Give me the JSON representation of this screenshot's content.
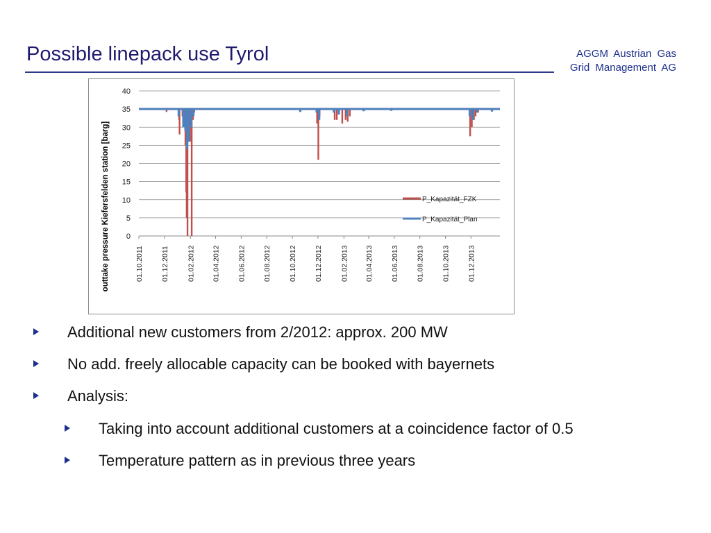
{
  "header": {
    "title": "Possible linepack use Tyrol",
    "brand_line1": "AGGM   Austrian   Gas",
    "brand_line2": "Grid Management  AG"
  },
  "chart_data": {
    "type": "line",
    "ylabel": "outtake pressure Kiefersfelden station [barg]",
    "xlabel": "",
    "ylim": [
      0,
      40
    ],
    "yticks": [
      0,
      5,
      10,
      15,
      20,
      25,
      30,
      35,
      40
    ],
    "xticks": [
      "01.10.2011",
      "01.12.2011",
      "01.02.2012",
      "01.04.2012",
      "01.06.2012",
      "01.08.2012",
      "01.10.2012",
      "01.12.2012",
      "01.02.2013",
      "01.04.2013",
      "01.06.2013",
      "01.08.2013",
      "01.10.2013",
      "01.12.2013"
    ],
    "x_range": [
      "2011-10-01",
      "2014-02-08"
    ],
    "grid": "horizontal",
    "legend": "right",
    "series": [
      {
        "name": "P_Kapazität_FZK",
        "color": "#c0504d",
        "baseline": 35,
        "dips": [
          {
            "date": "2011-12-06",
            "value": 34.2
          },
          {
            "date": "2012-01-05",
            "value": 32
          },
          {
            "date": "2012-01-06",
            "value": 28
          },
          {
            "date": "2012-01-13",
            "value": 33
          },
          {
            "date": "2012-01-20",
            "value": 25
          },
          {
            "date": "2012-01-22",
            "value": 12
          },
          {
            "date": "2012-01-23",
            "value": 5
          },
          {
            "date": "2012-01-24",
            "value": 17
          },
          {
            "date": "2012-01-25",
            "value": 0
          },
          {
            "date": "2012-01-28",
            "value": 28
          },
          {
            "date": "2012-01-31",
            "value": 26
          },
          {
            "date": "2012-02-04",
            "value": 0
          },
          {
            "date": "2012-02-07",
            "value": 32
          },
          {
            "date": "2012-02-10",
            "value": 34
          },
          {
            "date": "2012-11-29",
            "value": 31
          },
          {
            "date": "2012-12-02",
            "value": 21
          },
          {
            "date": "2012-12-05",
            "value": 33
          },
          {
            "date": "2013-01-10",
            "value": 32
          },
          {
            "date": "2013-01-15",
            "value": 32
          },
          {
            "date": "2013-01-28",
            "value": 31
          },
          {
            "date": "2013-02-05",
            "value": 32
          },
          {
            "date": "2013-02-10",
            "value": 31.5
          },
          {
            "date": "2013-02-15",
            "value": 33
          },
          {
            "date": "2013-11-29",
            "value": 27.5
          },
          {
            "date": "2013-12-03",
            "value": 30
          },
          {
            "date": "2013-12-08",
            "value": 32
          },
          {
            "date": "2013-12-12",
            "value": 33
          },
          {
            "date": "2013-12-18",
            "value": 34
          }
        ]
      },
      {
        "name": "P_Kapazität_Plan",
        "color": "#4f81bd",
        "baseline": 35,
        "dips": [
          {
            "date": "2012-01-04",
            "value": 33
          },
          {
            "date": "2012-01-15",
            "value": 30
          },
          {
            "date": "2012-01-20",
            "value": 29
          },
          {
            "date": "2012-01-24",
            "value": 24
          },
          {
            "date": "2012-01-28",
            "value": 26
          },
          {
            "date": "2012-02-03",
            "value": 30
          },
          {
            "date": "2012-02-08",
            "value": 33
          },
          {
            "date": "2012-10-20",
            "value": 34.2
          },
          {
            "date": "2012-11-28",
            "value": 34
          },
          {
            "date": "2012-12-04",
            "value": 32
          },
          {
            "date": "2013-01-08",
            "value": 34
          },
          {
            "date": "2013-01-20",
            "value": 33.5
          },
          {
            "date": "2013-02-08",
            "value": 33
          },
          {
            "date": "2013-03-20",
            "value": 34.4
          },
          {
            "date": "2013-05-25",
            "value": 34.5
          },
          {
            "date": "2013-11-28",
            "value": 33
          },
          {
            "date": "2013-12-05",
            "value": 32
          },
          {
            "date": "2013-12-15",
            "value": 34
          },
          {
            "date": "2014-01-20",
            "value": 34.3
          }
        ]
      }
    ]
  },
  "bullets": [
    {
      "level": 1,
      "text": "Additional new customers from 2/2012: approx. 200 MW"
    },
    {
      "level": 1,
      "text": "No add. freely allocable capacity can be booked with bayernets"
    },
    {
      "level": 1,
      "text": "Analysis:"
    },
    {
      "level": 2,
      "text": "Taking into account additional customers at a coincidence factor of 0.5"
    },
    {
      "level": 2,
      "text": "Temperature pattern as in previous three years"
    }
  ],
  "colors": {
    "title": "#1f1a6e",
    "accent": "#1c2f8c",
    "fzk": "#c0504d",
    "plan": "#4f81bd"
  }
}
